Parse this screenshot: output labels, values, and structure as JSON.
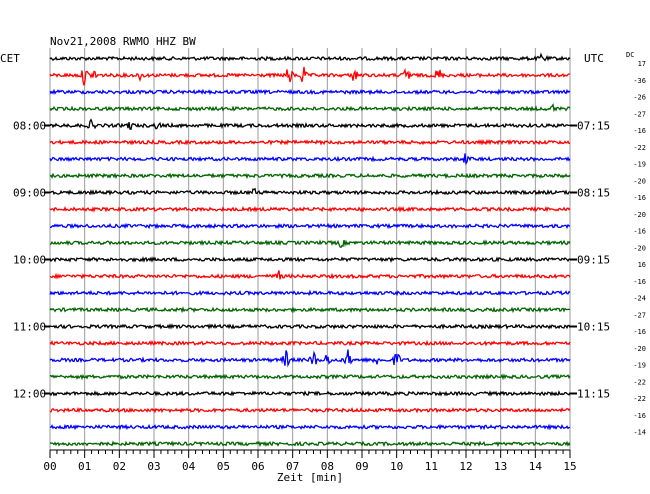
{
  "chart_data": {
    "type": "line",
    "title": "Nov21,2008   RWMO HHZ BW",
    "left_zone_label": "CET",
    "right_zone_label": "UTC",
    "dc_label": "DC",
    "xlabel": "Zeit [min]",
    "xlim": [
      0,
      15
    ],
    "x_ticks": [
      "00",
      "01",
      "02",
      "03",
      "04",
      "05",
      "06",
      "07",
      "08",
      "09",
      "10",
      "11",
      "12",
      "13",
      "14",
      "15"
    ],
    "trace_count": 24,
    "trace_colors": [
      "#000000",
      "#ff0000",
      "#0000ff",
      "#006400"
    ],
    "left_hour_labels": [
      {
        "trace": 4,
        "text": "08:00"
      },
      {
        "trace": 8,
        "text": "09:00"
      },
      {
        "trace": 12,
        "text": "10:00"
      },
      {
        "trace": 16,
        "text": "11:00"
      },
      {
        "trace": 20,
        "text": "12:00"
      }
    ],
    "right_hour_labels": [
      {
        "trace": 4,
        "text": "07:15"
      },
      {
        "trace": 8,
        "text": "08:15"
      },
      {
        "trace": 12,
        "text": "09:15"
      },
      {
        "trace": 16,
        "text": "10:15"
      },
      {
        "trace": 20,
        "text": "11:15"
      }
    ],
    "dc_offsets": [
      17,
      -36,
      -26,
      -27,
      -16,
      -22,
      -19,
      -20,
      -16,
      -20,
      -16,
      -20,
      16,
      -16,
      -24,
      -27,
      -16,
      -20,
      -19,
      -22,
      -22,
      -16,
      -14
    ],
    "events": [
      {
        "trace": 0,
        "minute": 14.2,
        "amplitude": 0.5
      },
      {
        "trace": 1,
        "minute": 1.0,
        "amplitude": 1.0
      },
      {
        "trace": 1,
        "minute": 1.3,
        "amplitude": 0.7
      },
      {
        "trace": 1,
        "minute": 2.6,
        "amplitude": 0.4
      },
      {
        "trace": 1,
        "minute": 6.9,
        "amplitude": 1.0
      },
      {
        "trace": 1,
        "minute": 7.3,
        "amplitude": 0.9
      },
      {
        "trace": 1,
        "minute": 8.8,
        "amplitude": 0.8
      },
      {
        "trace": 1,
        "minute": 10.3,
        "amplitude": 1.0
      },
      {
        "trace": 1,
        "minute": 11.2,
        "amplitude": 0.8
      },
      {
        "trace": 3,
        "minute": 14.5,
        "amplitude": 0.4
      },
      {
        "trace": 4,
        "minute": 1.2,
        "amplitude": 0.5
      },
      {
        "trace": 4,
        "minute": 2.3,
        "amplitude": 0.4
      },
      {
        "trace": 4,
        "minute": 3.1,
        "amplitude": 0.3
      },
      {
        "trace": 6,
        "minute": 12.0,
        "amplitude": 0.6
      },
      {
        "trace": 8,
        "minute": 5.9,
        "amplitude": 0.3
      },
      {
        "trace": 11,
        "minute": 8.4,
        "amplitude": 0.4
      },
      {
        "trace": 13,
        "minute": 6.6,
        "amplitude": 0.5
      },
      {
        "trace": 18,
        "minute": 6.8,
        "amplitude": 1.0
      },
      {
        "trace": 18,
        "minute": 7.6,
        "amplitude": 0.9
      },
      {
        "trace": 18,
        "minute": 8.0,
        "amplitude": 0.6
      },
      {
        "trace": 18,
        "minute": 8.6,
        "amplitude": 1.0
      },
      {
        "trace": 18,
        "minute": 9.4,
        "amplitude": 0.5
      },
      {
        "trace": 18,
        "minute": 10.0,
        "amplitude": 1.0
      }
    ],
    "grid": true
  }
}
